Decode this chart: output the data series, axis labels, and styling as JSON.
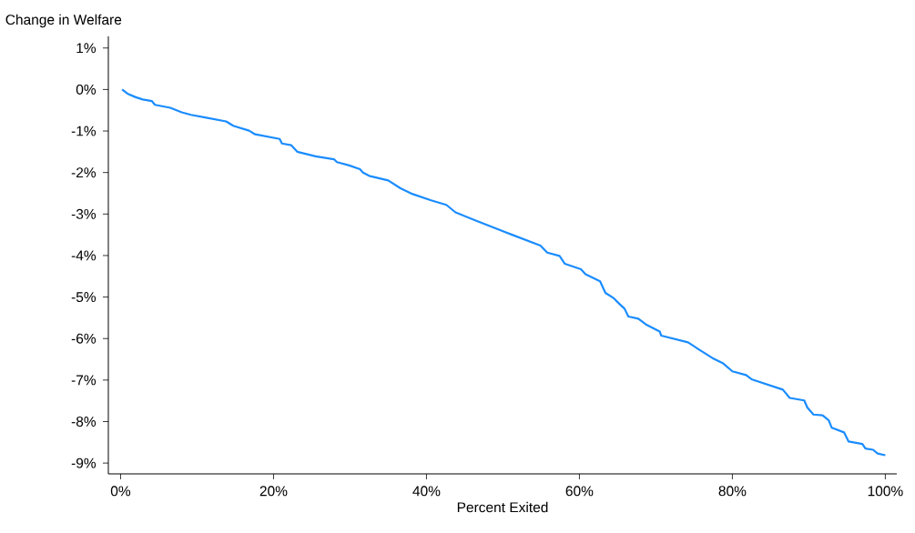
{
  "chart_data": {
    "type": "line",
    "ylabel": "Change in Welfare",
    "xlabel": "Percent Exited",
    "xlim": [
      -1.6,
      101.5
    ],
    "ylim": [
      -9.26,
      1.28
    ],
    "xticks": [
      {
        "value": 0,
        "label": "0%"
      },
      {
        "value": 20,
        "label": "20%"
      },
      {
        "value": 40,
        "label": "40%"
      },
      {
        "value": 60,
        "label": "60%"
      },
      {
        "value": 80,
        "label": "80%"
      },
      {
        "value": 100,
        "label": "100%"
      }
    ],
    "yticks": [
      {
        "value": 1,
        "label": "1%"
      },
      {
        "value": 0,
        "label": "0%"
      },
      {
        "value": -1,
        "label": "-1%"
      },
      {
        "value": -2,
        "label": "-2%"
      },
      {
        "value": -3,
        "label": "-3%"
      },
      {
        "value": -4,
        "label": "-4%"
      },
      {
        "value": -5,
        "label": "-5%"
      },
      {
        "value": -6,
        "label": "-6%"
      },
      {
        "value": -7,
        "label": "-7%"
      },
      {
        "value": -8,
        "label": "-8%"
      },
      {
        "value": -9,
        "label": "-9%"
      }
    ],
    "x": [
      0.2,
      0.9,
      1.9,
      2.9,
      4.1,
      4.5,
      6.5,
      8.0,
      9.2,
      11.2,
      13.8,
      14.8,
      16.8,
      17.6,
      20.8,
      21.1,
      22.3,
      23.1,
      25.5,
      27.9,
      28.3,
      29.9,
      31.3,
      31.7,
      32.5,
      35.0,
      36.6,
      38.2,
      40.6,
      42.6,
      43.8,
      46.6,
      51.2,
      54.9,
      55.8,
      57.4,
      58.1,
      60.2,
      60.8,
      62.7,
      63.4,
      64.5,
      65.2,
      65.9,
      66.4,
      67.7,
      68.7,
      70.5,
      70.7,
      74.2,
      75.6,
      77.4,
      78.8,
      80.0,
      81.8,
      82.5,
      86.6,
      87.5,
      89.4,
      89.8,
      90.6,
      91.8,
      92.6,
      93.0,
      94.6,
      95.2,
      97.0,
      97.4,
      98.4,
      99.0,
      100.0
    ],
    "series": [
      {
        "color": "#1a8cff",
        "values": [
          0,
          -0.1,
          -0.18,
          -0.24,
          -0.28,
          -0.37,
          -0.44,
          -0.55,
          -0.61,
          -0.68,
          -0.77,
          -0.88,
          -0.99,
          -1.08,
          -1.19,
          -1.3,
          -1.34,
          -1.5,
          -1.61,
          -1.68,
          -1.75,
          -1.83,
          -1.92,
          -2.0,
          -2.08,
          -2.19,
          -2.38,
          -2.52,
          -2.67,
          -2.78,
          -2.96,
          -3.17,
          -3.5,
          -3.76,
          -3.93,
          -4.01,
          -4.2,
          -4.33,
          -4.45,
          -4.62,
          -4.9,
          -5.03,
          -5.16,
          -5.28,
          -5.47,
          -5.52,
          -5.66,
          -5.83,
          -5.93,
          -6.09,
          -6.26,
          -6.47,
          -6.6,
          -6.79,
          -6.88,
          -6.98,
          -7.23,
          -7.43,
          -7.49,
          -7.66,
          -7.83,
          -7.85,
          -7.97,
          -8.15,
          -8.26,
          -8.48,
          -8.54,
          -8.65,
          -8.68,
          -8.77,
          -8.81
        ]
      }
    ]
  }
}
